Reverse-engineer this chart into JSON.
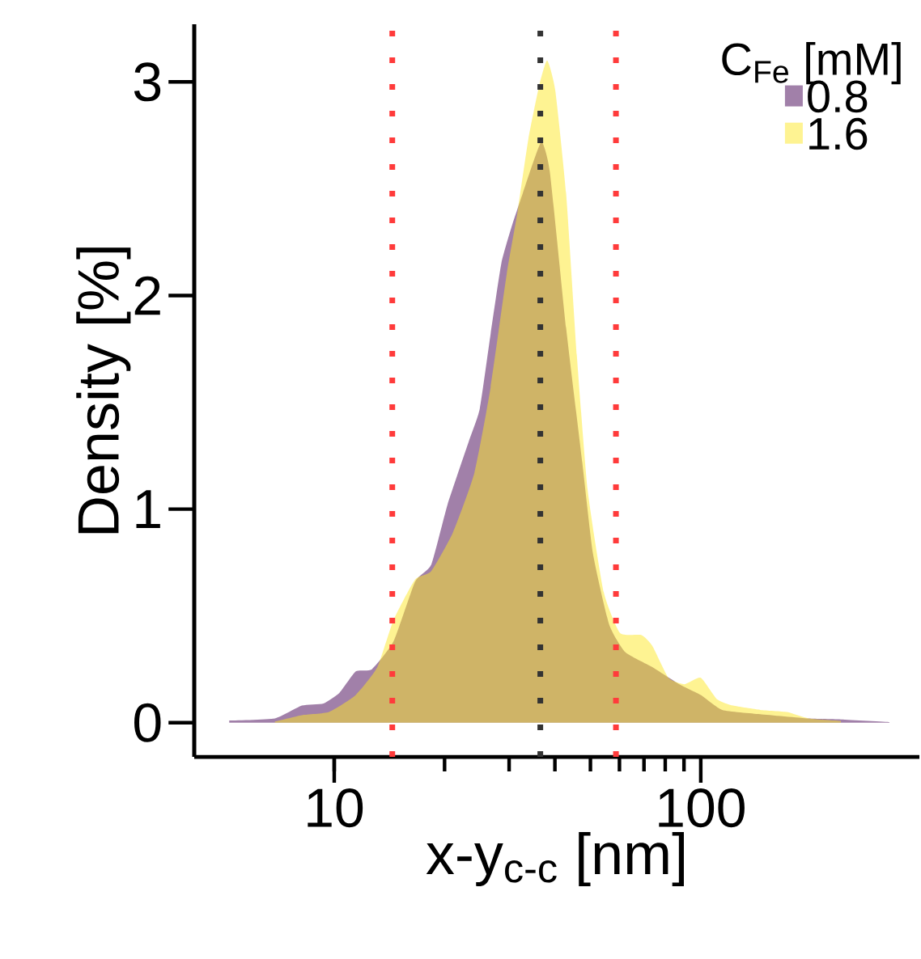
{
  "chart_data": {
    "type": "area",
    "xlabel": "x-y$_{c-c}$ [nm]",
    "ylabel": "Density [%]",
    "legend_title": "C$_{Fe}$ [mM]",
    "log": "x",
    "xlim": [
      4.15,
      395
    ],
    "xticks": [
      10,
      100
    ],
    "ylim": [
      -0.16,
      3.27
    ],
    "yticks": [
      0,
      1,
      2,
      3
    ],
    "grid": false,
    "legend": "top right",
    "x": [
      5.17,
      6.89,
      8.16,
      9.35,
      10.34,
      11.45,
      12.67,
      14.51,
      16.62,
      18.4,
      20.37,
      23.32,
      24.95,
      26.71,
      28.57,
      30.58,
      32.71,
      35.01,
      36.84,
      38.75,
      42.91,
      47.49,
      50.82,
      56.23,
      62.27,
      73.78,
      87.36,
      100,
      114.5,
      145.2,
      196.9,
      241.2,
      327.1
    ],
    "series": [
      {
        "name": "0.8",
        "color": "#440154",
        "values": [
          0.01,
          0.02,
          0.08,
          0.09,
          0.14,
          0.24,
          0.25,
          0.38,
          0.66,
          0.74,
          1.02,
          1.32,
          1.47,
          1.82,
          2.15,
          2.33,
          2.48,
          2.63,
          2.72,
          2.58,
          1.85,
          1.22,
          0.79,
          0.46,
          0.33,
          0.26,
          0.18,
          0.13,
          0.06,
          0.04,
          0.02,
          0.015,
          0.003
        ]
      },
      {
        "name": "1.6",
        "color": "#fde725",
        "x": [
          6.89,
          8.16,
          9.67,
          11.45,
          13.11,
          14.51,
          16.62,
          18.4,
          21.07,
          24.12,
          26.71,
          29.55,
          31.62,
          33.84,
          36.22,
          38.1,
          40.09,
          42.91,
          45.91,
          49.13,
          54.38,
          60.19,
          68.94,
          73.78,
          81.66,
          90.35,
          100,
          110.7,
          122.5,
          145.2,
          171.9,
          196.9,
          241.2
        ],
        "values": [
          0.005,
          0.035,
          0.05,
          0.13,
          0.26,
          0.48,
          0.67,
          0.71,
          0.89,
          1.17,
          1.57,
          2.1,
          2.39,
          2.73,
          2.98,
          3.1,
          2.96,
          2.48,
          1.72,
          1.09,
          0.61,
          0.42,
          0.41,
          0.36,
          0.21,
          0.18,
          0.21,
          0.11,
          0.08,
          0.06,
          0.05,
          0.02,
          0.008
        ]
      }
    ],
    "ref_lines": [
      {
        "axis": "x",
        "value": 14.4,
        "color": "#ff3b3b",
        "line_style": "dotted"
      },
      {
        "axis": "x",
        "value": 36.5,
        "color": "#333333",
        "line_style": "dotted"
      },
      {
        "axis": "x",
        "value": 58.7,
        "color": "#ff3b3b",
        "line_style": "dotted"
      }
    ]
  }
}
